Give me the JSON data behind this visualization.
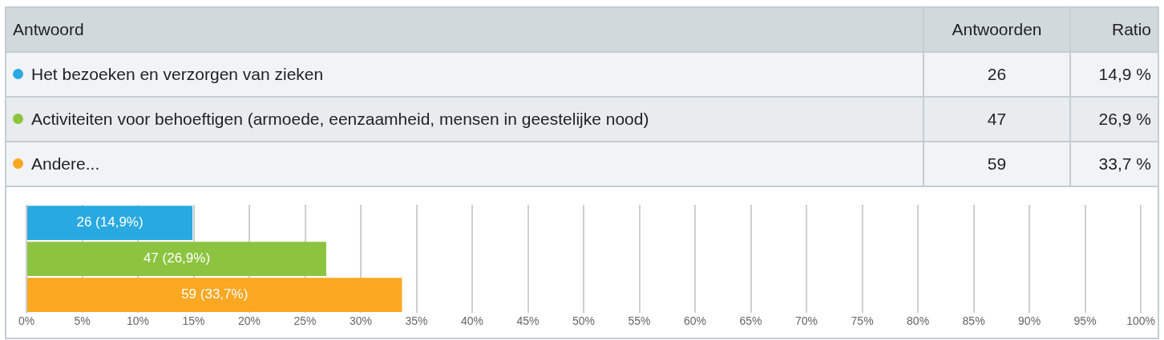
{
  "chart_data": {
    "type": "bar",
    "orientation": "horizontal",
    "categories": [
      null,
      null,
      null
    ],
    "values": [
      14.9,
      26.9,
      33.7
    ],
    "colors": [
      "#29a9e1",
      "#8cc43f",
      "#faa722"
    ],
    "value_labels": [
      "26 (14,9%)",
      "47 (26,9%)",
      "59 (33,7%)"
    ],
    "xlim": [
      0,
      100
    ],
    "xticks": [
      {
        "value": 0,
        "label": "0%"
      },
      {
        "value": 5,
        "label": "5%"
      },
      {
        "value": 10,
        "label": "10%"
      },
      {
        "value": 15,
        "label": "15%"
      },
      {
        "value": 20,
        "label": "20%"
      },
      {
        "value": 25,
        "label": "25%"
      },
      {
        "value": 30,
        "label": "30%"
      },
      {
        "value": 35,
        "label": "35%"
      },
      {
        "value": 40,
        "label": "40%"
      },
      {
        "value": 45,
        "label": "45%"
      },
      {
        "value": 50,
        "label": "50%"
      },
      {
        "value": 55,
        "label": "55%"
      },
      {
        "value": 60,
        "label": "60%"
      },
      {
        "value": 65,
        "label": "65%"
      },
      {
        "value": 70,
        "label": "70%"
      },
      {
        "value": 75,
        "label": "75%"
      },
      {
        "value": 80,
        "label": "80%"
      },
      {
        "value": 85,
        "label": "85%"
      },
      {
        "value": 90,
        "label": "90%"
      },
      {
        "value": 95,
        "label": "95%"
      },
      {
        "value": 100,
        "label": "100%"
      }
    ],
    "grid": "x",
    "annotations": [
      "Antwoord",
      "Antwoorden",
      "Ratio",
      "Het bezoeken en verzorgen van zieken",
      "26",
      "14,9 %",
      "Activiteiten voor behoeftigen (armoede, eenzaamheid, mensen in geestelijke nood)",
      "47",
      "26,9 %",
      "Andere...",
      "59",
      "33,7 %"
    ]
  }
}
